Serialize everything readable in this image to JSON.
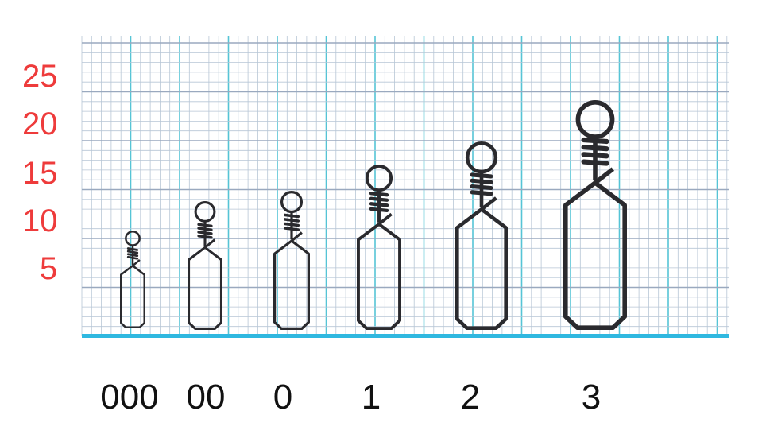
{
  "y_axis": {
    "labels": [
      "25",
      "20",
      "15",
      "10",
      "5"
    ],
    "color": "#ee3b3b"
  },
  "sizes": [
    "000",
    "00",
    "0",
    "1",
    "2",
    "3"
  ],
  "colors": {
    "grid_minor": "#b7c6d6",
    "grid_major": "#55c4d6",
    "baseline": "#2fb8e0",
    "metal": "#2a2a2e"
  }
}
